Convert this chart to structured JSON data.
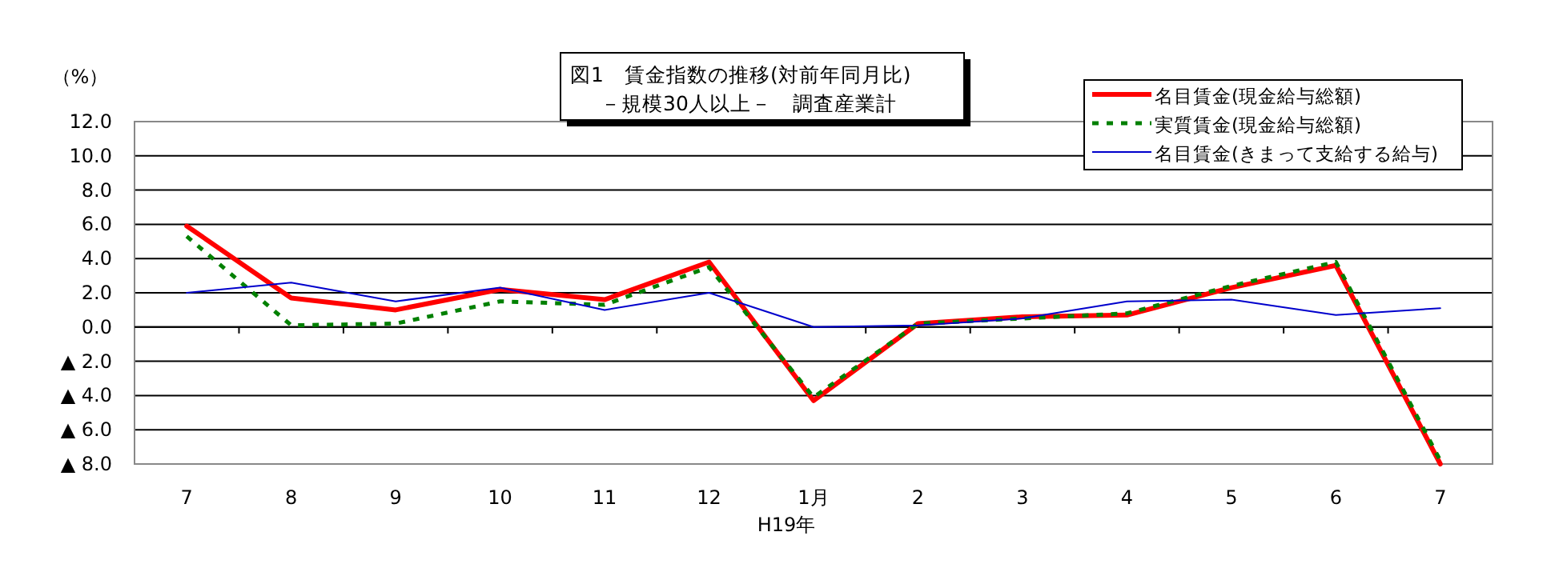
{
  "chart_data": {
    "type": "line",
    "title": "図1　賃金指数の推移(対前年同月比)",
    "subtitle": "－規模30人以上－　調査産業計",
    "ylabel": "（%）",
    "categories": [
      "7",
      "8",
      "9",
      "10",
      "11",
      "12",
      "1月",
      "2",
      "3",
      "4",
      "5",
      "6",
      "7"
    ],
    "annotations": [
      "H19年"
    ],
    "series": [
      {
        "name": "名目賃金(現金給与総額)",
        "color": "#ff0000",
        "line_style": "solid",
        "values": [
          5.9,
          1.7,
          1.0,
          2.2,
          1.6,
          3.8,
          -4.3,
          0.2,
          0.6,
          0.7,
          2.3,
          3.6,
          -8.0
        ]
      },
      {
        "name": "実質賃金(現金給与総額)",
        "color": "#008000",
        "line_style": "dashed",
        "values": [
          5.3,
          0.1,
          0.2,
          1.5,
          1.3,
          3.5,
          -4.1,
          0.2,
          0.5,
          0.8,
          2.4,
          3.8,
          -7.8
        ]
      },
      {
        "name": "名目賃金(きまって支給する給与)",
        "color": "#0000cc",
        "line_style": "solid",
        "values": [
          2.0,
          2.6,
          1.5,
          2.3,
          1.0,
          2.0,
          0.0,
          0.1,
          0.5,
          1.5,
          1.6,
          0.7,
          1.1
        ]
      }
    ],
    "ylim": [
      -8,
      12
    ],
    "yticks": [
      {
        "value": 12,
        "label": "12.0"
      },
      {
        "value": 10,
        "label": "10.0"
      },
      {
        "value": 8,
        "label": "8.0"
      },
      {
        "value": 6,
        "label": "6.0"
      },
      {
        "value": 4,
        "label": "4.0"
      },
      {
        "value": 2,
        "label": "2.0"
      },
      {
        "value": 0,
        "label": "0.0"
      },
      {
        "value": -2,
        "label": "▲ 2.0"
      },
      {
        "value": -4,
        "label": "▲ 4.0"
      },
      {
        "value": -6,
        "label": "▲ 6.0"
      },
      {
        "value": -8,
        "label": "▲ 8.0"
      }
    ],
    "grid": "y",
    "legend": "top right",
    "marker": "none"
  }
}
